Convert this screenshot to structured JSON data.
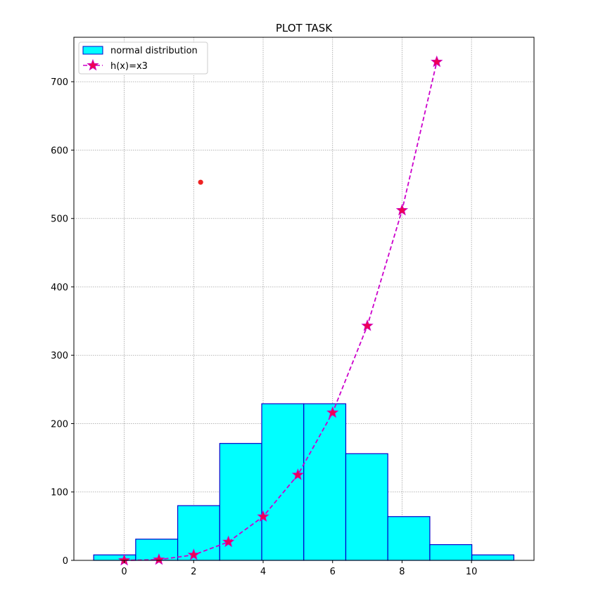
{
  "chart_data": {
    "type": "bar",
    "title": "PLOT TASK",
    "xlabel": "",
    "ylabel": "",
    "xlim": [
      -1.45,
      11.8
    ],
    "ylim": [
      0,
      765
    ],
    "xticks": [
      0,
      2,
      4,
      6,
      8,
      10
    ],
    "yticks": [
      0,
      100,
      200,
      300,
      400,
      500,
      600,
      700
    ],
    "grid": true,
    "legend_position": "top-left",
    "histogram": {
      "name": "normal distribution",
      "fill_color": "#00ffff",
      "edge_color": "#0000cc",
      "bins": [
        {
          "start": -0.88,
          "end": 0.33,
          "count": 8
        },
        {
          "start": 0.33,
          "end": 1.54,
          "count": 31
        },
        {
          "start": 1.54,
          "end": 2.75,
          "count": 80
        },
        {
          "start": 2.75,
          "end": 3.96,
          "count": 171
        },
        {
          "start": 3.96,
          "end": 5.17,
          "count": 229
        },
        {
          "start": 5.17,
          "end": 6.38,
          "count": 229
        },
        {
          "start": 6.38,
          "end": 7.59,
          "count": 156
        },
        {
          "start": 7.59,
          "end": 8.8,
          "count": 64
        },
        {
          "start": 8.8,
          "end": 10.01,
          "count": 23
        },
        {
          "start": 10.01,
          "end": 11.22,
          "count": 8
        }
      ]
    },
    "line": {
      "name": "h(x)=x3",
      "line_color": "#cc00cc",
      "marker_color": "#ee0055",
      "x": [
        0,
        1,
        2,
        3,
        4,
        5,
        6,
        7,
        8,
        9
      ],
      "y": [
        0,
        1,
        8,
        27,
        64,
        125,
        216,
        343,
        512,
        729
      ]
    },
    "point": {
      "x": 2.2,
      "y": 553,
      "color": "#ee2222"
    }
  }
}
